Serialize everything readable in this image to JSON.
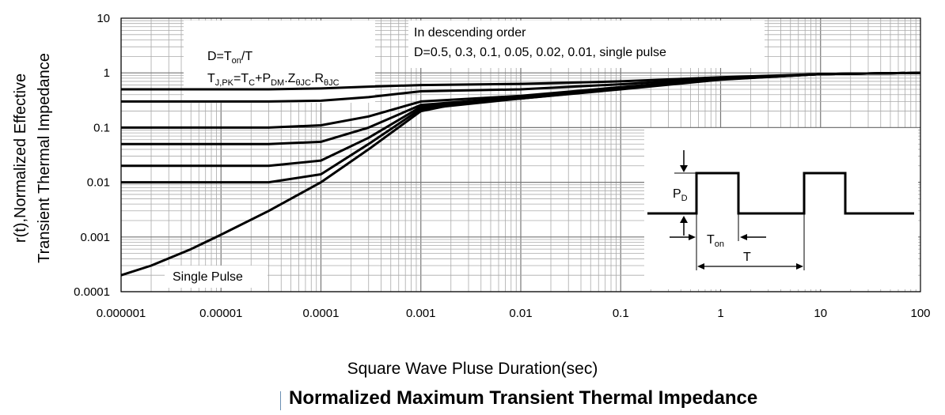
{
  "chart_data": {
    "type": "line",
    "title": "Normalized Maximum Transient Thermal Impedance",
    "xlabel": "Square Wave Pluse Duration(sec)",
    "ylabel_line1": "r(t),Normalized Effective",
    "ylabel_line2": "Transient Thermal Impedance",
    "x_scale": "log",
    "y_scale": "log",
    "xlim": [
      1e-06,
      100
    ],
    "ylim": [
      0.0001,
      10
    ],
    "x_tick_labels": [
      "0.000001",
      "0.00001",
      "0.0001",
      "0.001",
      "0.01",
      "0.1",
      "1",
      "10",
      "100"
    ],
    "y_tick_labels": [
      "0.0001",
      "0.001",
      "0.01",
      "0.1",
      "1",
      "10"
    ],
    "grid": true,
    "series": [
      {
        "name": "D=0.5",
        "points": [
          [
            1e-06,
            0.5
          ],
          [
            3e-05,
            0.5
          ],
          [
            0.0001,
            0.52
          ],
          [
            0.0003,
            0.56
          ],
          [
            0.001,
            0.6
          ],
          [
            0.01,
            0.63
          ],
          [
            0.1,
            0.7
          ],
          [
            1,
            0.83
          ],
          [
            10,
            0.95
          ],
          [
            100,
            1.0
          ]
        ]
      },
      {
        "name": "D=0.3",
        "points": [
          [
            1e-06,
            0.3
          ],
          [
            3e-05,
            0.3
          ],
          [
            0.0001,
            0.31
          ],
          [
            0.0003,
            0.36
          ],
          [
            0.001,
            0.46
          ],
          [
            0.01,
            0.5
          ],
          [
            0.1,
            0.62
          ],
          [
            1,
            0.8
          ],
          [
            10,
            0.95
          ],
          [
            100,
            1.0
          ]
        ]
      },
      {
        "name": "D=0.1",
        "points": [
          [
            1e-06,
            0.1
          ],
          [
            3e-05,
            0.1
          ],
          [
            0.0001,
            0.11
          ],
          [
            0.0003,
            0.16
          ],
          [
            0.001,
            0.3
          ],
          [
            0.01,
            0.38
          ],
          [
            0.1,
            0.55
          ],
          [
            1,
            0.78
          ],
          [
            10,
            0.95
          ],
          [
            100,
            1.0
          ]
        ]
      },
      {
        "name": "D=0.05",
        "points": [
          [
            1e-06,
            0.05
          ],
          [
            3e-05,
            0.05
          ],
          [
            0.0001,
            0.055
          ],
          [
            0.0003,
            0.1
          ],
          [
            0.001,
            0.26
          ],
          [
            0.01,
            0.36
          ],
          [
            0.1,
            0.53
          ],
          [
            1,
            0.77
          ],
          [
            10,
            0.95
          ],
          [
            100,
            1.0
          ]
        ]
      },
      {
        "name": "D=0.02",
        "points": [
          [
            1e-06,
            0.02
          ],
          [
            3e-05,
            0.02
          ],
          [
            0.0001,
            0.025
          ],
          [
            0.0003,
            0.065
          ],
          [
            0.001,
            0.24
          ],
          [
            0.01,
            0.35
          ],
          [
            0.1,
            0.52
          ],
          [
            1,
            0.76
          ],
          [
            10,
            0.95
          ],
          [
            100,
            1.0
          ]
        ]
      },
      {
        "name": "D=0.01",
        "points": [
          [
            1e-06,
            0.01
          ],
          [
            3e-05,
            0.01
          ],
          [
            0.0001,
            0.014
          ],
          [
            0.0003,
            0.05
          ],
          [
            0.001,
            0.22
          ],
          [
            0.01,
            0.34
          ],
          [
            0.1,
            0.51
          ],
          [
            1,
            0.76
          ],
          [
            10,
            0.95
          ],
          [
            100,
            1.0
          ]
        ]
      },
      {
        "name": "single pulse",
        "points": [
          [
            1e-06,
            0.0002
          ],
          [
            2e-06,
            0.0003
          ],
          [
            5e-06,
            0.0006
          ],
          [
            1e-05,
            0.0011
          ],
          [
            3e-05,
            0.003
          ],
          [
            0.0001,
            0.01
          ],
          [
            0.0003,
            0.04
          ],
          [
            0.001,
            0.2
          ],
          [
            0.003,
            0.3
          ],
          [
            0.01,
            0.34
          ],
          [
            0.1,
            0.5
          ],
          [
            1,
            0.75
          ],
          [
            10,
            0.95
          ],
          [
            100,
            1.0
          ]
        ]
      }
    ]
  },
  "annotations": {
    "box1": {
      "line1_prefix": "D=T",
      "line1_sub": "on",
      "line1_suffix": "/T",
      "line2_a": "T",
      "line2_a_sub": "J,PK",
      "line2_b": "=T",
      "line2_b_sub": "C",
      "line2_c": "+P",
      "line2_c_sub": "DM",
      "line2_d": ".Z",
      "line2_d_sub": "θJC",
      "line2_e": ".R",
      "line2_e_sub": "θJC"
    },
    "box2": {
      "line1": "In descending order",
      "line2": "D=0.5, 0.3, 0.1, 0.05, 0.02, 0.01, single pulse"
    },
    "single_pulse_label": "Single Pulse",
    "inset": {
      "pdm_main": "P",
      "pdm_sub": "D",
      "ton_main": "T",
      "ton_sub": "on",
      "period": "T"
    }
  }
}
